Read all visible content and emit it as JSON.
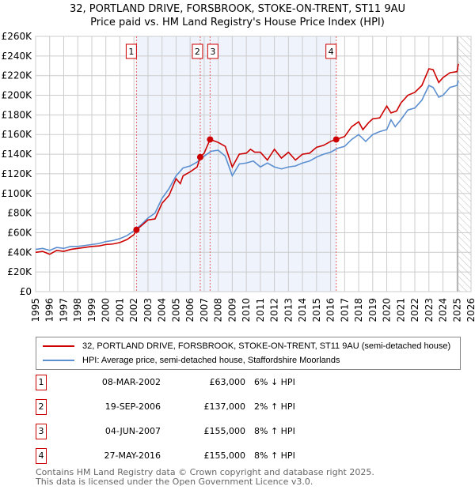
{
  "chart_data": {
    "type": "line",
    "title": "32, PORTLAND DRIVE, FORSBROOK, STOKE-ON-TRENT, ST11 9AU",
    "subtitle": "Price paid vs. HM Land Registry's House Price Index (HPI)",
    "xlim": [
      1995,
      2026
    ],
    "ylim": [
      0,
      260000
    ],
    "y_ticks": [
      {
        "v": 0,
        "label": "£0"
      },
      {
        "v": 20000,
        "label": "£20K"
      },
      {
        "v": 40000,
        "label": "£40K"
      },
      {
        "v": 60000,
        "label": "£60K"
      },
      {
        "v": 80000,
        "label": "£80K"
      },
      {
        "v": 100000,
        "label": "£100K"
      },
      {
        "v": 120000,
        "label": "£120K"
      },
      {
        "v": 140000,
        "label": "£140K"
      },
      {
        "v": 160000,
        "label": "£160K"
      },
      {
        "v": 180000,
        "label": "£180K"
      },
      {
        "v": 200000,
        "label": "£200K"
      },
      {
        "v": 220000,
        "label": "£220K"
      },
      {
        "v": 240000,
        "label": "£240K"
      },
      {
        "v": 260000,
        "label": "£260K"
      }
    ],
    "x_ticks": [
      "1995",
      "1996",
      "1997",
      "1998",
      "1999",
      "2000",
      "2001",
      "2002",
      "2003",
      "2004",
      "2005",
      "2006",
      "2007",
      "2008",
      "2009",
      "2010",
      "2011",
      "2012",
      "2013",
      "2014",
      "2015",
      "2016",
      "2017",
      "2018",
      "2019",
      "2020",
      "2021",
      "2022",
      "2023",
      "2024",
      "2025",
      "2026"
    ],
    "grid": true,
    "shaded_range": [
      2002.18,
      2016.4
    ],
    "hatched_from": 2025.1,
    "series": [
      {
        "name": "32, PORTLAND DRIVE, FORSBROOK, STOKE-ON-TRENT, ST11 9AU (semi-detached house)",
        "color": "#cc0000",
        "x": [
          1995,
          1995.5,
          1996,
          1996.5,
          1997,
          1997.5,
          1998,
          1998.5,
          1999,
          1999.5,
          2000,
          2000.5,
          2001,
          2001.5,
          2002,
          2002.18,
          2002.6,
          2003,
          2003.5,
          2004,
          2004.5,
          2005,
          2005.3,
          2005.5,
          2006,
          2006.5,
          2006.72,
          2007,
          2007.42,
          2008,
          2008.5,
          2009,
          2009.5,
          2010,
          2010.3,
          2010.6,
          2011,
          2011.5,
          2012,
          2012.5,
          2013,
          2013.5,
          2014,
          2014.5,
          2015,
          2015.5,
          2016,
          2016.4,
          2017,
          2017.5,
          2018,
          2018.3,
          2018.7,
          2019,
          2019.5,
          2020,
          2020.3,
          2020.7,
          2021,
          2021.5,
          2022,
          2022.5,
          2023,
          2023.3,
          2023.7,
          2024,
          2024.5,
          2025,
          2025.1
        ],
        "y": [
          40000,
          41000,
          38000,
          42000,
          41000,
          43000,
          44000,
          45000,
          46000,
          46500,
          48000,
          48500,
          50000,
          53000,
          58000,
          63000,
          68000,
          73000,
          74000,
          90000,
          98000,
          115000,
          110000,
          118000,
          122000,
          127000,
          137000,
          141000,
          155000,
          152000,
          148000,
          127000,
          140000,
          141000,
          145000,
          142000,
          142000,
          134000,
          145000,
          136000,
          142000,
          134000,
          140000,
          141000,
          147000,
          149000,
          153000,
          155000,
          158000,
          168000,
          173000,
          165000,
          172000,
          176000,
          177000,
          189000,
          182000,
          184000,
          192000,
          200000,
          203000,
          210000,
          227000,
          226000,
          213000,
          218000,
          223000,
          224000,
          232000
        ]
      },
      {
        "name": "HPI: Average price, semi-detached house, Staffordshire Moorlands",
        "color": "#5b8fd0",
        "x": [
          1995,
          1995.5,
          1996,
          1996.5,
          1997,
          1997.5,
          1998,
          1998.5,
          1999,
          1999.5,
          2000,
          2000.5,
          2001,
          2001.5,
          2002,
          2002.5,
          2003,
          2003.5,
          2004,
          2004.5,
          2005,
          2005.5,
          2006,
          2006.5,
          2007,
          2007.5,
          2008,
          2008.5,
          2009,
          2009.5,
          2010,
          2010.5,
          2011,
          2011.5,
          2012,
          2012.5,
          2013,
          2013.5,
          2014,
          2014.5,
          2015,
          2015.5,
          2016,
          2016.5,
          2017,
          2017.5,
          2018,
          2018.5,
          2019,
          2019.5,
          2020,
          2020.3,
          2020.6,
          2021,
          2021.5,
          2022,
          2022.5,
          2023,
          2023.3,
          2023.7,
          2024,
          2024.5,
          2025,
          2025.1
        ],
        "y": [
          43000,
          44000,
          42000,
          45000,
          44000,
          46000,
          46000,
          47000,
          48000,
          49000,
          51000,
          52000,
          54000,
          57000,
          62000,
          68000,
          75000,
          80000,
          95000,
          105000,
          118000,
          126000,
          128000,
          132000,
          138000,
          143000,
          144000,
          138000,
          118000,
          130000,
          131000,
          133000,
          127000,
          131000,
          127000,
          125000,
          127000,
          128000,
          131000,
          133000,
          137000,
          140000,
          142000,
          146000,
          148000,
          155000,
          160000,
          153000,
          160000,
          163000,
          165000,
          175000,
          168000,
          175000,
          185000,
          187000,
          195000,
          210000,
          208000,
          198000,
          200000,
          208000,
          210000,
          215000
        ]
      }
    ],
    "sales": [
      {
        "n": "1",
        "x": 2002.18,
        "y": 63000,
        "date": "08-MAR-2002",
        "price": "£63,000",
        "hpi": "6% ↓ HPI"
      },
      {
        "n": "2",
        "x": 2006.72,
        "y": 137000,
        "date": "19-SEP-2006",
        "price": "£137,000",
        "hpi": "2% ↑ HPI"
      },
      {
        "n": "3",
        "x": 2007.42,
        "y": 155000,
        "date": "04-JUN-2007",
        "price": "£155,000",
        "hpi": "8% ↑ HPI"
      },
      {
        "n": "4",
        "x": 2016.4,
        "y": 155000,
        "date": "27-MAY-2016",
        "price": "£155,000",
        "hpi": "8% ↑ HPI"
      }
    ]
  },
  "legend": {
    "red": "32, PORTLAND DRIVE, FORSBROOK, STOKE-ON-TRENT, ST11 9AU (semi-detached house)",
    "blue": "HPI: Average price, semi-detached house, Staffordshire Moorlands"
  },
  "footer": {
    "line1": "Contains HM Land Registry data © Crown copyright and database right 2025.",
    "line2": "This data is licensed under the Open Government Licence v3.0."
  }
}
